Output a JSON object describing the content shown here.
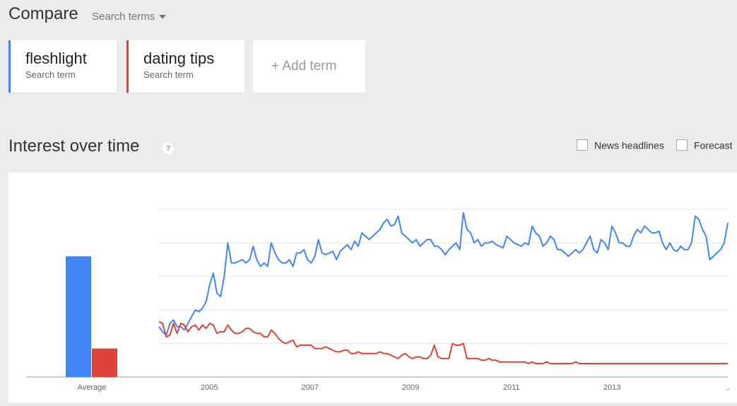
{
  "header": {
    "title": "Compare",
    "search_terms_label": "Search terms"
  },
  "terms": [
    {
      "name": "fleshlight",
      "sub": "Search term",
      "color": "#4285f4"
    },
    {
      "name": "dating tips",
      "sub": "Search term",
      "color": "#db4437"
    }
  ],
  "add_term_label": "+ Add term",
  "section": {
    "title": "Interest over time",
    "help_icon": "?",
    "news_headlines_label": "News headlines",
    "forecast_label": "Forecast"
  },
  "chart_data": {
    "type": "line",
    "average": {
      "label": "Average",
      "values": [
        72,
        17
      ]
    },
    "x_ticks": [
      "2005",
      "2007",
      "2009",
      "2011",
      "2013",
      ".."
    ],
    "x_tick_years": [
      2005,
      2007,
      2009,
      2011,
      2013,
      2015.3
    ],
    "x_range": [
      2004.0,
      2015.3
    ],
    "ylim": [
      0,
      100
    ],
    "series": [
      {
        "name": "fleshlight",
        "color": "#4285f4",
        "values": [
          30,
          27,
          25,
          32,
          34,
          30,
          30,
          28,
          32,
          36,
          40,
          39,
          41,
          45,
          55,
          62,
          50,
          48,
          60,
          80,
          68,
          68,
          69,
          70,
          68,
          70,
          78,
          70,
          66,
          68,
          66,
          80,
          74,
          70,
          68,
          68,
          70,
          66,
          74,
          74,
          76,
          70,
          68,
          72,
          82,
          74,
          73,
          74,
          75,
          70,
          75,
          77,
          79,
          76,
          81,
          78,
          86,
          84,
          82,
          84,
          86,
          88,
          92,
          94,
          90,
          91,
          96,
          86,
          84,
          82,
          80,
          82,
          78,
          80,
          82,
          82,
          78,
          78,
          76,
          73,
          76,
          78,
          80,
          76,
          98,
          88,
          86,
          80,
          82,
          78,
          80,
          80,
          81,
          79,
          78,
          77,
          84,
          82,
          80,
          79,
          78,
          80,
          79,
          90,
          86,
          84,
          78,
          80,
          84,
          82,
          76,
          76,
          74,
          72,
          74,
          76,
          74,
          76,
          80,
          84,
          76,
          74,
          82,
          80,
          76,
          90,
          86,
          80,
          80,
          78,
          78,
          84,
          88,
          86,
          90,
          88,
          86,
          86,
          87,
          80,
          76,
          80,
          76,
          75,
          78,
          76,
          76,
          80,
          96,
          94,
          88,
          84,
          70,
          72,
          74,
          76,
          80,
          92
        ]
      },
      {
        "name": "dating tips",
        "color": "#db4437",
        "values": [
          33,
          32,
          24,
          25,
          32,
          26,
          32,
          31,
          27,
          30,
          31,
          28,
          31,
          29,
          32,
          31,
          26,
          27,
          27,
          31,
          28,
          26,
          26,
          27,
          29,
          29,
          27,
          26,
          26,
          24,
          24,
          28,
          26,
          23,
          21,
          20,
          21,
          22,
          18,
          19,
          19,
          19,
          19,
          17,
          17,
          17,
          18,
          17,
          16,
          15,
          15,
          16,
          16,
          14,
          14,
          15,
          14,
          14,
          14,
          14,
          14,
          15,
          14,
          14,
          13,
          12,
          11,
          13,
          14,
          12,
          11,
          12,
          12,
          11,
          11,
          13,
          19,
          12,
          11,
          11,
          11,
          20,
          19,
          19,
          20,
          11,
          11,
          11,
          11,
          10,
          10,
          11,
          10,
          10,
          9,
          9,
          9,
          9,
          9,
          9,
          9,
          9,
          8,
          9,
          8,
          8,
          8,
          9,
          8,
          8,
          8,
          8,
          8,
          8,
          8,
          9,
          8,
          8,
          8,
          8,
          8,
          8,
          8,
          8,
          8,
          8,
          8,
          8,
          8,
          8,
          8,
          8,
          8,
          8,
          8,
          8,
          8,
          8,
          8,
          8,
          8,
          8,
          8,
          8,
          8,
          8,
          8,
          8,
          8,
          8,
          8,
          8,
          8,
          8,
          8,
          8,
          8,
          8
        ]
      }
    ]
  }
}
